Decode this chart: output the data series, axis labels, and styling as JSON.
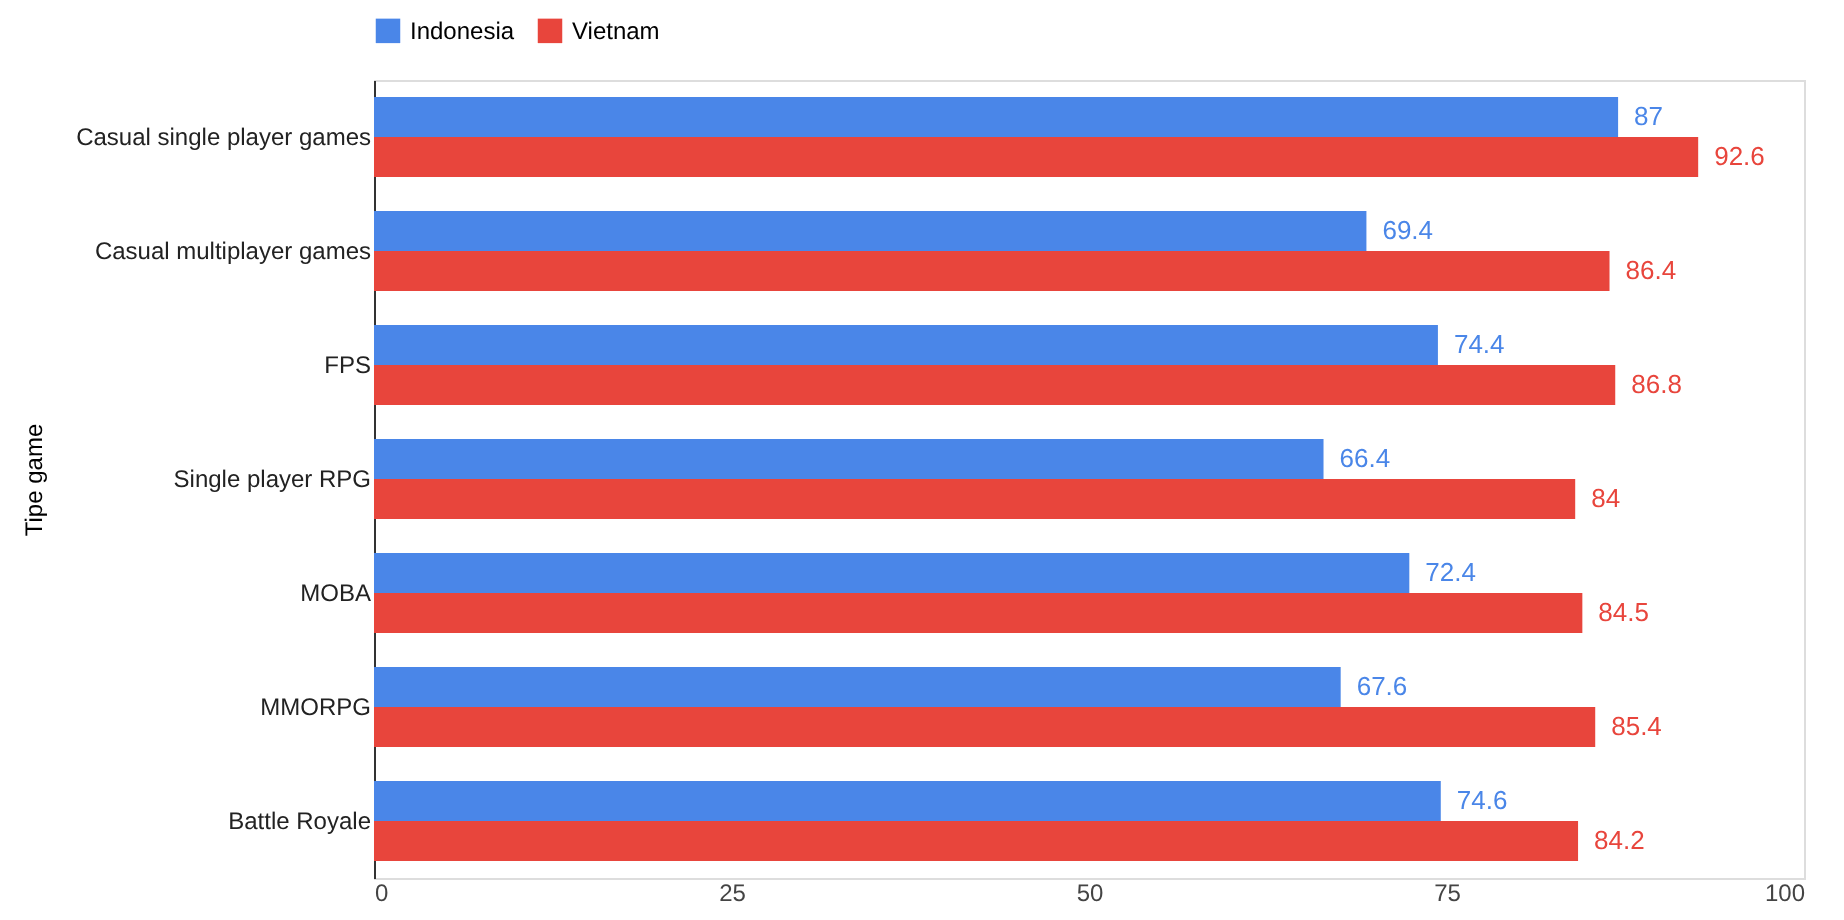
{
  "chart_data": {
    "type": "bar",
    "orientation": "horizontal",
    "ylabel": "Tipe game",
    "categories": [
      "Casual single player games",
      "Casual multiplayer games",
      "FPS",
      "Single player RPG",
      "MOBA",
      "MMORPG",
      "Battle Royale"
    ],
    "series": [
      {
        "name": "Indonesia",
        "color": "#4a86e8",
        "values": [
          87,
          69.4,
          74.4,
          66.4,
          72.4,
          67.6,
          74.6
        ]
      },
      {
        "name": "Vietnam",
        "color": "#e8453c",
        "values": [
          92.6,
          86.4,
          86.8,
          84,
          84.5,
          85.4,
          84.2
        ]
      }
    ],
    "xlim": [
      0,
      100
    ],
    "xticks": [
      0,
      25,
      50,
      75,
      100
    ],
    "data_labels": true,
    "legend": "top",
    "grid": false
  }
}
